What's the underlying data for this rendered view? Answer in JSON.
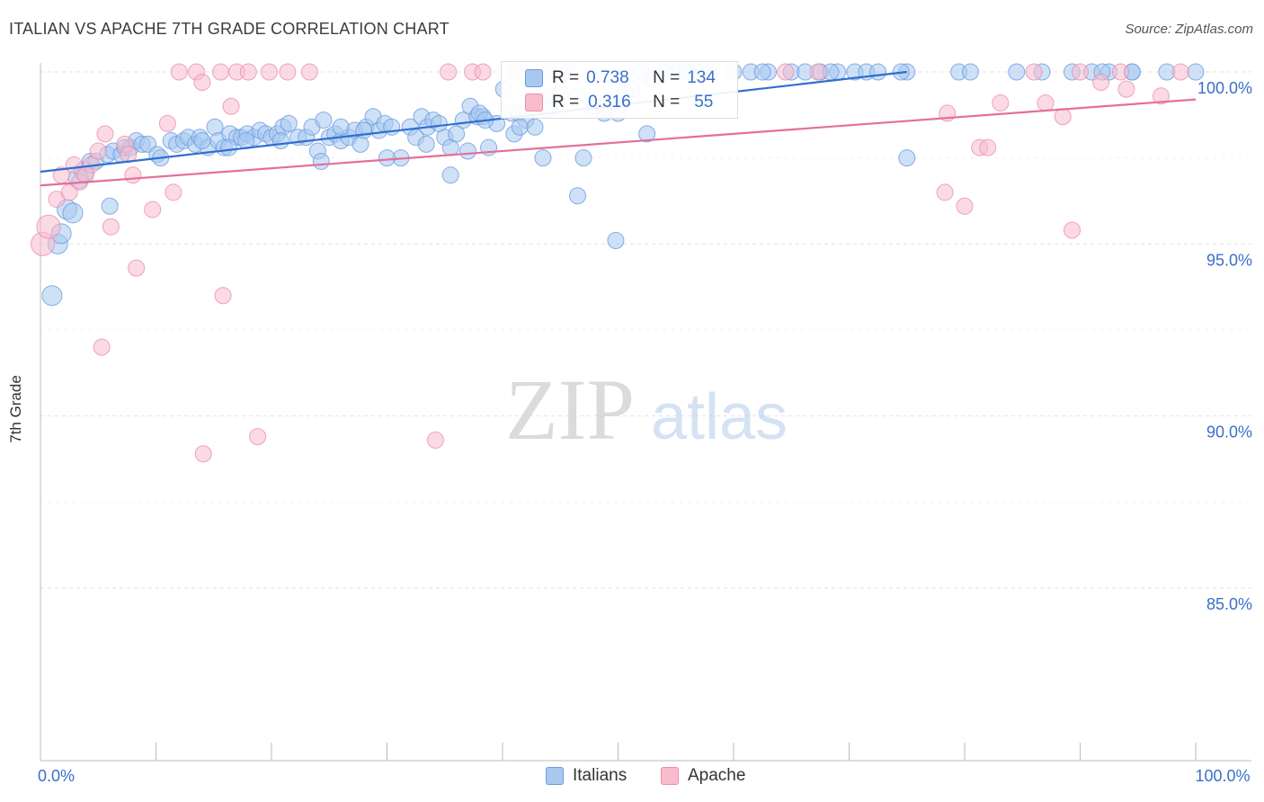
{
  "title": "ITALIAN VS APACHE 7TH GRADE CORRELATION CHART",
  "source": "Source: ZipAtlas.com",
  "watermark": {
    "zip": "ZIP",
    "atlas": "atlas"
  },
  "legend_box": {
    "rows": [
      {
        "r_label": "R =",
        "r_value": "0.738",
        "n_label": "N =",
        "n_value": "134"
      },
      {
        "r_label": "R =",
        "r_value": "0.316",
        "n_label": "N =",
        "n_value": "55"
      }
    ]
  },
  "legend_bottom": [
    {
      "label": "Italians"
    },
    {
      "label": "Apache"
    }
  ],
  "colors": {
    "italians_fill": "#a8c8f0",
    "italians_stroke": "#6b9be0",
    "italians_line": "#2f6fd0",
    "apache_fill": "#f8bccd",
    "apache_stroke": "#eb8fac",
    "apache_line": "#e46f98",
    "tick_label": "#3a6fc9",
    "grid": "#e2e2e2"
  },
  "chart_data": {
    "type": "scatter",
    "title": "ITALIAN VS APACHE 7TH GRADE CORRELATION CHART",
    "xlabel": "",
    "ylabel": "7th Grade",
    "xlim": [
      0,
      100
    ],
    "ylim": [
      80.5,
      100.8
    ],
    "x_tick_labels": [
      {
        "value": 0,
        "label": "0.0%"
      },
      {
        "value": 100,
        "label": "100.0%"
      }
    ],
    "y_tick_labels": [
      {
        "value": 100,
        "label": "100.0%"
      },
      {
        "value": 95,
        "label": "95.0%"
      },
      {
        "value": 90,
        "label": "90.0%"
      },
      {
        "value": 85,
        "label": "85.0%"
      }
    ],
    "series": [
      {
        "name": "Italians",
        "trend": {
          "x0": 0,
          "y0": 97.1,
          "x1": 75,
          "y1": 100.0
        },
        "points": [
          [
            1.0,
            93.5
          ],
          [
            1.5,
            95.0
          ],
          [
            1.8,
            95.3
          ],
          [
            2.3,
            96.0
          ],
          [
            2.8,
            95.9
          ],
          [
            3.3,
            96.9
          ],
          [
            3.8,
            97.1
          ],
          [
            4.3,
            97.4
          ],
          [
            4.8,
            97.4
          ],
          [
            5.8,
            97.6
          ],
          [
            6.3,
            97.7
          ],
          [
            7.0,
            97.6
          ],
          [
            7.3,
            97.8
          ],
          [
            7.8,
            97.8
          ],
          [
            8.3,
            98.0
          ],
          [
            8.8,
            97.9
          ],
          [
            9.3,
            97.9
          ],
          [
            10.1,
            97.6
          ],
          [
            10.4,
            97.5
          ],
          [
            11.3,
            98.0
          ],
          [
            11.8,
            97.9
          ],
          [
            12.4,
            98.0
          ],
          [
            12.8,
            98.1
          ],
          [
            13.4,
            97.9
          ],
          [
            13.8,
            98.1
          ],
          [
            14.5,
            97.8
          ],
          [
            15.1,
            98.4
          ],
          [
            15.4,
            98.0
          ],
          [
            15.9,
            97.8
          ],
          [
            16.4,
            98.2
          ],
          [
            17.0,
            98.1
          ],
          [
            17.4,
            98.1
          ],
          [
            17.9,
            98.2
          ],
          [
            18.5,
            98.1
          ],
          [
            19.0,
            98.3
          ],
          [
            19.5,
            98.2
          ],
          [
            20.0,
            98.1
          ],
          [
            20.5,
            98.2
          ],
          [
            21.0,
            98.4
          ],
          [
            21.5,
            98.5
          ],
          [
            22.3,
            98.1
          ],
          [
            23.0,
            98.1
          ],
          [
            23.5,
            98.4
          ],
          [
            24.0,
            97.7
          ],
          [
            24.5,
            98.6
          ],
          [
            25.0,
            98.1
          ],
          [
            25.5,
            98.2
          ],
          [
            26.0,
            98.0
          ],
          [
            26.7,
            98.1
          ],
          [
            27.2,
            98.3
          ],
          [
            27.7,
            97.9
          ],
          [
            28.2,
            98.4
          ],
          [
            28.8,
            98.7
          ],
          [
            29.3,
            98.3
          ],
          [
            29.8,
            98.5
          ],
          [
            30.4,
            98.4
          ],
          [
            31.2,
            97.5
          ],
          [
            32.0,
            98.4
          ],
          [
            32.5,
            98.1
          ],
          [
            33.0,
            98.7
          ],
          [
            33.5,
            98.4
          ],
          [
            34.0,
            98.6
          ],
          [
            34.5,
            98.5
          ],
          [
            35.0,
            98.1
          ],
          [
            35.5,
            97.8
          ],
          [
            36.0,
            98.2
          ],
          [
            36.6,
            98.6
          ],
          [
            37.2,
            99.0
          ],
          [
            37.8,
            98.7
          ],
          [
            38.3,
            98.7
          ],
          [
            38.8,
            97.8
          ],
          [
            39.5,
            98.5
          ],
          [
            40.1,
            99.5
          ],
          [
            40.8,
            98.8
          ],
          [
            41.4,
            98.8
          ],
          [
            42.0,
            98.6
          ],
          [
            42.8,
            98.4
          ],
          [
            43.5,
            97.5
          ],
          [
            44.2,
            99.3
          ],
          [
            45.0,
            99.4
          ],
          [
            46.5,
            99.3
          ],
          [
            48.0,
            99.0
          ],
          [
            48.8,
            98.8
          ],
          [
            49.5,
            99.1
          ],
          [
            50.0,
            98.8
          ],
          [
            50.6,
            99.4
          ],
          [
            51.2,
            99.5
          ],
          [
            52.0,
            100.0
          ],
          [
            53.0,
            99.8
          ],
          [
            54.0,
            100.0
          ],
          [
            55.0,
            100.0
          ],
          [
            56.0,
            100.0
          ],
          [
            58.0,
            100.0
          ],
          [
            60.0,
            100.0
          ],
          [
            61.5,
            100.0
          ],
          [
            63.0,
            100.0
          ],
          [
            65.0,
            100.0
          ],
          [
            67.5,
            100.0
          ],
          [
            69.0,
            100.0
          ],
          [
            70.5,
            100.0
          ],
          [
            71.5,
            100.0
          ],
          [
            72.5,
            100.0
          ],
          [
            75.0,
            100.0
          ],
          [
            79.5,
            100.0
          ],
          [
            80.5,
            100.0
          ],
          [
            84.5,
            100.0
          ],
          [
            86.7,
            100.0
          ],
          [
            89.3,
            100.0
          ],
          [
            91.0,
            100.0
          ],
          [
            92.5,
            100.0
          ],
          [
            94.5,
            100.0
          ],
          [
            49.8,
            95.1
          ],
          [
            46.5,
            96.4
          ],
          [
            35.5,
            97.0
          ],
          [
            24.3,
            97.4
          ],
          [
            30.0,
            97.5
          ],
          [
            41.0,
            98.2
          ],
          [
            47.0,
            97.5
          ],
          [
            37.0,
            97.7
          ],
          [
            16.3,
            97.8
          ],
          [
            56.0,
            100.0
          ],
          [
            74.5,
            100.0
          ],
          [
            41.5,
            98.4
          ],
          [
            38.0,
            98.8
          ],
          [
            44.0,
            98.9
          ],
          [
            52.5,
            98.2
          ],
          [
            75.0,
            97.5
          ],
          [
            38.5,
            98.6
          ],
          [
            28.0,
            98.3
          ],
          [
            20.8,
            98.0
          ],
          [
            6.0,
            96.1
          ],
          [
            17.8,
            98.0
          ],
          [
            14.0,
            98.0
          ],
          [
            26.0,
            98.4
          ],
          [
            33.4,
            97.9
          ],
          [
            45.7,
            100.0
          ],
          [
            57.0,
            100.0
          ],
          [
            62.5,
            100.0
          ],
          [
            66.2,
            100.0
          ],
          [
            68.4,
            100.0
          ],
          [
            91.9,
            100.0
          ],
          [
            94.5,
            100.0
          ],
          [
            97.5,
            100.0
          ],
          [
            100.0,
            100.0
          ]
        ]
      },
      {
        "name": "Apache",
        "trend": {
          "x0": 0,
          "y0": 96.7,
          "x1": 100,
          "y1": 99.2
        },
        "points": [
          [
            0.2,
            95.0
          ],
          [
            0.7,
            95.5
          ],
          [
            1.4,
            96.3
          ],
          [
            1.8,
            97.0
          ],
          [
            2.5,
            96.5
          ],
          [
            2.9,
            97.3
          ],
          [
            3.4,
            96.8
          ],
          [
            3.9,
            97.0
          ],
          [
            4.4,
            97.3
          ],
          [
            5.0,
            97.7
          ],
          [
            5.6,
            98.2
          ],
          [
            6.1,
            95.5
          ],
          [
            7.3,
            97.9
          ],
          [
            7.6,
            97.6
          ],
          [
            8.0,
            97.0
          ],
          [
            8.3,
            94.3
          ],
          [
            9.7,
            96.0
          ],
          [
            11.0,
            98.5
          ],
          [
            11.5,
            96.5
          ],
          [
            12.0,
            100.0
          ],
          [
            13.5,
            100.0
          ],
          [
            14.0,
            99.7
          ],
          [
            15.6,
            100.0
          ],
          [
            16.5,
            99.0
          ],
          [
            17.0,
            100.0
          ],
          [
            18.0,
            100.0
          ],
          [
            19.8,
            100.0
          ],
          [
            21.4,
            100.0
          ],
          [
            23.3,
            100.0
          ],
          [
            5.3,
            92.0
          ],
          [
            14.1,
            88.9
          ],
          [
            15.8,
            93.5
          ],
          [
            18.8,
            89.4
          ],
          [
            34.2,
            89.3
          ],
          [
            35.3,
            100.0
          ],
          [
            37.4,
            100.0
          ],
          [
            38.3,
            100.0
          ],
          [
            41.0,
            100.0
          ],
          [
            44.2,
            100.0
          ],
          [
            64.5,
            100.0
          ],
          [
            67.3,
            100.0
          ],
          [
            78.3,
            96.5
          ],
          [
            78.5,
            98.8
          ],
          [
            80.0,
            96.1
          ],
          [
            81.3,
            97.8
          ],
          [
            82.0,
            97.8
          ],
          [
            83.1,
            99.1
          ],
          [
            86.0,
            100.0
          ],
          [
            87.0,
            99.1
          ],
          [
            88.5,
            98.7
          ],
          [
            89.3,
            95.4
          ],
          [
            90.0,
            100.0
          ],
          [
            91.8,
            99.7
          ],
          [
            93.5,
            100.0
          ],
          [
            94.0,
            99.5
          ],
          [
            97.0,
            99.3
          ],
          [
            98.7,
            100.0
          ]
        ]
      }
    ]
  }
}
